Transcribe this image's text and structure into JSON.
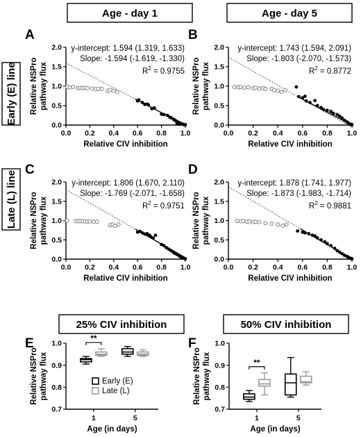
{
  "headers": {
    "top_left": "Age - day 1",
    "top_right": "Age - day 5",
    "bottom_left": "25% CIV inhibition",
    "bottom_right": "50% CIV inhibition"
  },
  "side_labels": {
    "early": "Early (E) line",
    "late": "Late (L) line"
  },
  "colors": {
    "filled": "#000000",
    "open": "#888888",
    "late_box": "#999999"
  },
  "chart_data": [
    {
      "type": "scatter",
      "panel": "A",
      "xlabel": "Relative CIV inhibition",
      "ylabel": [
        "Relative NSPro",
        "pathway flux"
      ],
      "xlim": [
        0,
        1
      ],
      "ylim": [
        0,
        2
      ],
      "xticks": [
        "0.0",
        "0.2",
        "0.4",
        "0.6",
        "0.8",
        "1.0"
      ],
      "yticks": [
        "0.0",
        "0.5",
        "1.0",
        "1.5",
        "2.0"
      ],
      "fit": {
        "intercept_text": "y-intercept: 1.594 (1.319, 1.633)",
        "slope_text": "Slope: -1.594 (-1.619, -1.330)",
        "r2_value": " = 0.9755",
        "intercept": 1.594,
        "slope": -1.594
      },
      "open_points": [
        [
          0.01,
          0.98
        ],
        [
          0.03,
          0.97
        ],
        [
          0.06,
          0.98
        ],
        [
          0.1,
          0.95
        ],
        [
          0.12,
          0.96
        ],
        [
          0.14,
          0.95
        ],
        [
          0.16,
          0.96
        ],
        [
          0.18,
          0.95
        ],
        [
          0.22,
          0.94
        ],
        [
          0.25,
          0.92
        ],
        [
          0.27,
          0.93
        ],
        [
          0.3,
          0.93
        ],
        [
          0.35,
          0.88
        ],
        [
          0.37,
          0.9
        ],
        [
          0.4,
          0.88
        ],
        [
          0.43,
          0.85
        ]
      ],
      "filled_points": [
        [
          0.6,
          0.62
        ],
        [
          0.61,
          0.65
        ],
        [
          0.64,
          0.58
        ],
        [
          0.66,
          0.53
        ],
        [
          0.68,
          0.54
        ],
        [
          0.69,
          0.52
        ],
        [
          0.72,
          0.42
        ],
        [
          0.74,
          0.44
        ],
        [
          0.8,
          0.28
        ],
        [
          0.82,
          0.27
        ],
        [
          0.85,
          0.25
        ],
        [
          0.87,
          0.2
        ],
        [
          0.88,
          0.19
        ],
        [
          0.9,
          0.15
        ],
        [
          0.91,
          0.13
        ],
        [
          0.92,
          0.11
        ],
        [
          0.93,
          0.09
        ],
        [
          0.94,
          0.07
        ],
        [
          0.95,
          0.06
        ],
        [
          0.96,
          0.04
        ],
        [
          0.97,
          0.03
        ],
        [
          0.98,
          0.02
        ],
        [
          0.99,
          0.01
        ],
        [
          1.0,
          0.01
        ],
        [
          0.93,
          0.04
        ],
        [
          0.95,
          0.02
        ]
      ]
    },
    {
      "type": "scatter",
      "panel": "B",
      "xlabel": "Relative CIV inhibition",
      "ylabel": [
        "Relative NSPro",
        "pathway flux"
      ],
      "xlim": [
        0,
        1
      ],
      "ylim": [
        0,
        2
      ],
      "xticks": [
        "0.0",
        "0.2",
        "0.4",
        "0.6",
        "0.8",
        "1.0"
      ],
      "yticks": [
        "0.0",
        "0.5",
        "1.0",
        "1.5",
        "2.0"
      ],
      "fit": {
        "intercept_text": "y-intercept: 1.743 (1.594, 2.091)",
        "slope_text": "Slope: -1.803 (-2.070, -1.573)",
        "r2_value": " = 0.8772",
        "intercept": 1.743,
        "slope": -1.803
      },
      "open_points": [
        [
          0.05,
          0.98
        ],
        [
          0.08,
          0.97
        ],
        [
          0.1,
          0.98
        ],
        [
          0.13,
          0.96
        ],
        [
          0.16,
          0.97
        ],
        [
          0.2,
          0.95
        ],
        [
          0.22,
          0.96
        ],
        [
          0.25,
          0.94
        ],
        [
          0.28,
          0.95
        ],
        [
          0.3,
          0.93
        ],
        [
          0.35,
          0.93
        ],
        [
          0.37,
          0.9
        ],
        [
          0.4,
          0.88
        ],
        [
          0.43,
          0.85
        ],
        [
          0.46,
          0.9
        ]
      ],
      "filled_points": [
        [
          0.55,
          0.98
        ],
        [
          0.57,
          0.73
        ],
        [
          0.6,
          0.7
        ],
        [
          0.62,
          0.74
        ],
        [
          0.63,
          0.62
        ],
        [
          0.66,
          0.58
        ],
        [
          0.7,
          0.63
        ],
        [
          0.72,
          0.5
        ],
        [
          0.75,
          0.45
        ],
        [
          0.77,
          0.4
        ],
        [
          0.8,
          0.38
        ],
        [
          0.83,
          0.35
        ],
        [
          0.85,
          0.3
        ],
        [
          0.88,
          0.27
        ],
        [
          0.9,
          0.23
        ],
        [
          0.92,
          0.18
        ],
        [
          0.94,
          0.12
        ],
        [
          0.96,
          0.08
        ],
        [
          0.97,
          0.05
        ],
        [
          0.98,
          0.03
        ],
        [
          0.99,
          0.02
        ],
        [
          1.0,
          0.01
        ]
      ]
    },
    {
      "type": "scatter",
      "panel": "C",
      "xlabel": "Relative CIV inhibition",
      "ylabel": [
        "Relative NSPro",
        "pathway flux"
      ],
      "xlim": [
        0,
        1
      ],
      "ylim": [
        0,
        2
      ],
      "xticks": [
        "0.0",
        "0.2",
        "0.4",
        "0.6",
        "0.8",
        "1.0"
      ],
      "yticks": [
        "0.0",
        "0.5",
        "1.0",
        "1.5",
        "2.0"
      ],
      "fit": {
        "intercept_text": "y-intercept: 1.806 (1.670, 2.110)",
        "slope_text": "Slope: -1.769 (-2.071, -1.658)",
        "r2_value": " = 0.9751",
        "intercept": 1.806,
        "slope": -1.769
      },
      "open_points": [
        [
          0.01,
          1.0
        ],
        [
          0.08,
          0.99
        ],
        [
          0.1,
          0.98
        ],
        [
          0.12,
          0.99
        ],
        [
          0.14,
          0.98
        ],
        [
          0.16,
          0.98
        ],
        [
          0.18,
          0.97
        ],
        [
          0.2,
          0.98
        ],
        [
          0.23,
          0.97
        ],
        [
          0.26,
          0.97
        ],
        [
          0.37,
          0.88
        ],
        [
          0.39,
          0.9
        ],
        [
          0.41,
          0.86
        ],
        [
          0.44,
          0.9
        ]
      ],
      "filled_points": [
        [
          0.6,
          0.7
        ],
        [
          0.62,
          0.72
        ],
        [
          0.64,
          0.68
        ],
        [
          0.66,
          0.65
        ],
        [
          0.68,
          0.66
        ],
        [
          0.7,
          0.62
        ],
        [
          0.71,
          0.58
        ],
        [
          0.73,
          0.55
        ],
        [
          0.75,
          0.62
        ],
        [
          0.8,
          0.38
        ],
        [
          0.82,
          0.35
        ],
        [
          0.84,
          0.3
        ],
        [
          0.86,
          0.26
        ],
        [
          0.88,
          0.22
        ],
        [
          0.9,
          0.18
        ],
        [
          0.91,
          0.15
        ],
        [
          0.93,
          0.12
        ],
        [
          0.95,
          0.08
        ],
        [
          0.96,
          0.06
        ],
        [
          0.97,
          0.04
        ],
        [
          0.98,
          0.03
        ],
        [
          0.99,
          0.02
        ],
        [
          1.0,
          0.01
        ]
      ]
    },
    {
      "type": "scatter",
      "panel": "D",
      "xlabel": "Relative CIV inhibition",
      "ylabel": [
        "Relative NSPro",
        "pathway flux"
      ],
      "xlim": [
        0,
        1
      ],
      "ylim": [
        0,
        2
      ],
      "xticks": [
        "0.0",
        "0.2",
        "0.4",
        "0.6",
        "0.8",
        "1.0"
      ],
      "yticks": [
        "0.0",
        "0.5",
        "1.0",
        "1.5",
        "2.0"
      ],
      "fit": {
        "intercept_text": "y-intercept: 1.878 (1.741, 1.977)",
        "slope_text": "Slope: -1.873 (-1.983, -1.714)",
        "r2_value": " = 0.9881",
        "intercept": 1.878,
        "slope": -1.873
      },
      "open_points": [
        [
          0.07,
          0.99
        ],
        [
          0.1,
          0.98
        ],
        [
          0.12,
          0.99
        ],
        [
          0.15,
          0.97
        ],
        [
          0.17,
          0.98
        ],
        [
          0.2,
          0.96
        ],
        [
          0.22,
          0.97
        ],
        [
          0.25,
          0.96
        ],
        [
          0.3,
          0.93
        ],
        [
          0.35,
          0.92
        ],
        [
          0.4,
          0.9
        ],
        [
          0.44,
          0.87
        ],
        [
          0.47,
          0.9
        ]
      ],
      "filled_points": [
        [
          0.56,
          0.73
        ],
        [
          0.6,
          0.7
        ],
        [
          0.62,
          0.68
        ],
        [
          0.65,
          0.66
        ],
        [
          0.68,
          0.62
        ],
        [
          0.7,
          0.6
        ],
        [
          0.72,
          0.55
        ],
        [
          0.75,
          0.5
        ],
        [
          0.78,
          0.45
        ],
        [
          0.8,
          0.4
        ],
        [
          0.83,
          0.35
        ],
        [
          0.86,
          0.28
        ],
        [
          0.88,
          0.22
        ],
        [
          0.9,
          0.18
        ],
        [
          0.92,
          0.14
        ],
        [
          0.94,
          0.1
        ],
        [
          0.96,
          0.07
        ],
        [
          0.97,
          0.05
        ],
        [
          0.98,
          0.03
        ],
        [
          0.99,
          0.02
        ],
        [
          1.0,
          0.01
        ]
      ]
    },
    {
      "type": "box",
      "panel": "E",
      "xlabel": "Age (in days)",
      "ylabel": [
        "Relative NSPro",
        "pathway flux"
      ],
      "ylim": [
        0.7,
        1.0
      ],
      "yticks": [
        "0.7",
        "0.8",
        "0.9",
        "1.0"
      ],
      "categories": [
        "1",
        "5"
      ],
      "legend": [
        "Early (E)",
        "Late (L)"
      ],
      "series": [
        {
          "name": "Early (E)",
          "boxes": [
            [
              0.905,
              0.915,
              0.925,
              0.93,
              0.94
            ],
            [
              0.94,
              0.95,
              0.96,
              0.975,
              0.985
            ]
          ]
        },
        {
          "name": "Late (L)",
          "boxes": [
            [
              0.94,
              0.945,
              0.95,
              0.96,
              0.975
            ],
            [
              0.94,
              0.945,
              0.95,
              0.96,
              0.97
            ]
          ]
        }
      ],
      "significance": "**"
    },
    {
      "type": "box",
      "panel": "F",
      "xlabel": "Age (in days)",
      "ylabel": [
        "Relative NSPro",
        "pathway flux"
      ],
      "ylim": [
        0.7,
        1.0
      ],
      "yticks": [
        "0.7",
        "0.8",
        "0.9",
        "1.0"
      ],
      "categories": [
        "1",
        "5"
      ],
      "series": [
        {
          "name": "Early (E)",
          "boxes": [
            [
              0.735,
              0.745,
              0.755,
              0.77,
              0.785
            ],
            [
              0.755,
              0.765,
              0.82,
              0.86,
              0.935
            ]
          ]
        },
        {
          "name": "Late (L)",
          "boxes": [
            [
              0.765,
              0.805,
              0.815,
              0.835,
              0.865
            ],
            [
              0.81,
              0.82,
              0.825,
              0.85,
              0.87
            ]
          ]
        }
      ],
      "significance": "**"
    }
  ]
}
